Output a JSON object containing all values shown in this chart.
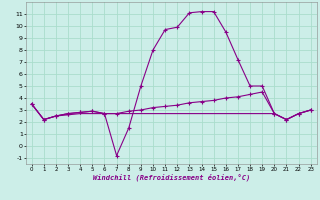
{
  "x": [
    0,
    1,
    2,
    3,
    4,
    5,
    6,
    7,
    8,
    9,
    10,
    11,
    12,
    13,
    14,
    15,
    16,
    17,
    18,
    19,
    20,
    21,
    22,
    23
  ],
  "line1": [
    3.5,
    2.2,
    2.5,
    2.7,
    2.8,
    2.9,
    2.7,
    -0.8,
    1.5,
    5.0,
    8.0,
    9.7,
    9.9,
    11.1,
    11.2,
    11.2,
    9.5,
    7.2,
    5.0,
    5.0,
    2.7,
    2.2,
    2.7,
    3.0
  ],
  "line2": [
    3.5,
    2.2,
    2.5,
    2.7,
    2.8,
    2.9,
    2.7,
    2.7,
    2.9,
    3.0,
    3.2,
    3.3,
    3.4,
    3.6,
    3.7,
    3.8,
    4.0,
    4.1,
    4.3,
    4.5,
    2.7,
    2.2,
    2.7,
    3.0
  ],
  "line3": [
    3.5,
    2.2,
    2.5,
    2.6,
    2.7,
    2.7,
    2.7,
    2.7,
    2.7,
    2.7,
    2.7,
    2.7,
    2.7,
    2.7,
    2.7,
    2.7,
    2.7,
    2.7,
    2.7,
    2.7,
    2.7,
    2.2,
    2.7,
    3.0
  ],
  "background_color": "#cceee8",
  "grid_color": "#aaddcc",
  "line_color": "#880088",
  "xlabel": "Windchill (Refroidissement éolien,°C)",
  "ylim": [
    -1.5,
    12.0
  ],
  "xlim": [
    -0.5,
    23.5
  ],
  "yticks": [
    -1,
    0,
    1,
    2,
    3,
    4,
    5,
    6,
    7,
    8,
    9,
    10,
    11
  ],
  "xticks": [
    0,
    1,
    2,
    3,
    4,
    5,
    6,
    7,
    8,
    9,
    10,
    11,
    12,
    13,
    14,
    15,
    16,
    17,
    18,
    19,
    20,
    21,
    22,
    23
  ]
}
